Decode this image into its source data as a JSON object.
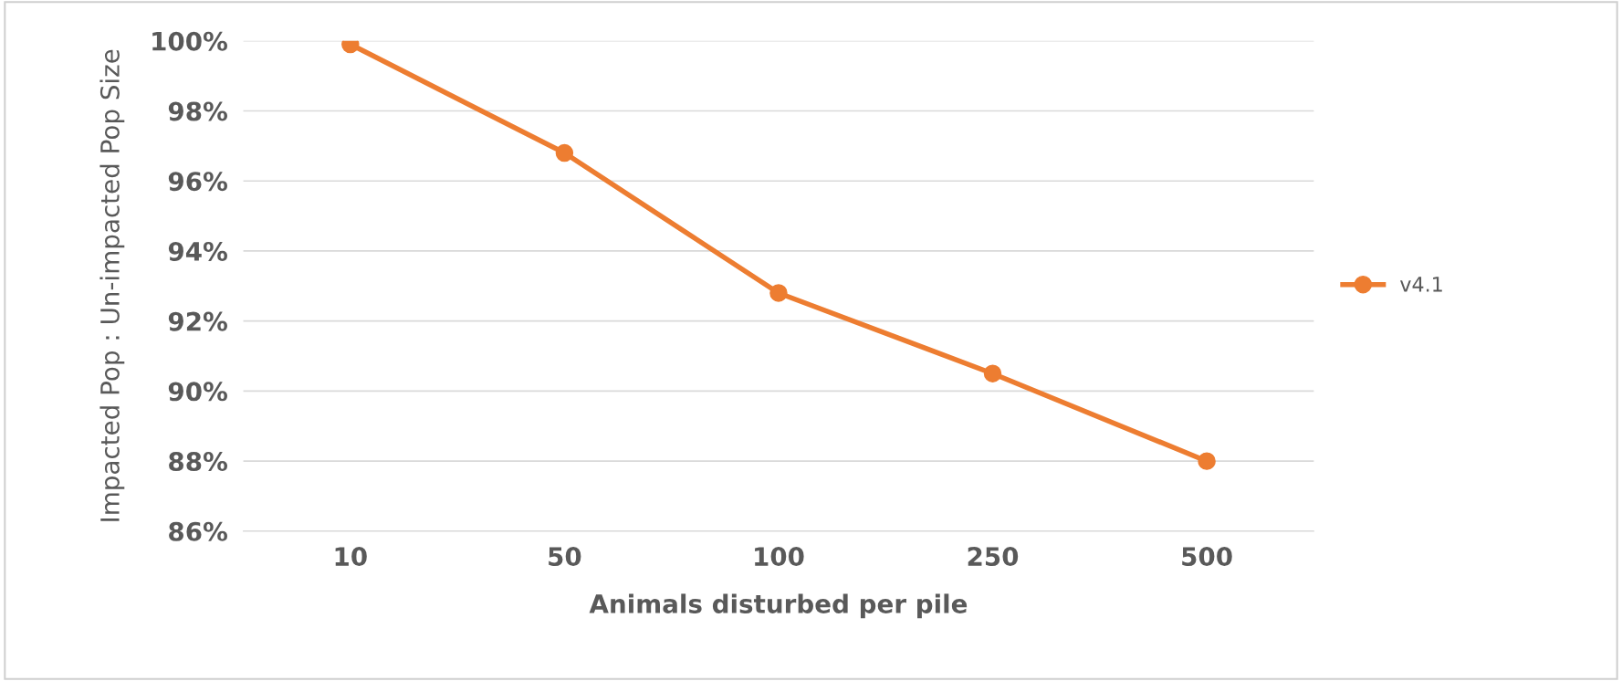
{
  "chart_data": {
    "type": "line",
    "xlabel": "Animals disturbed per pile",
    "ylabel": "Impacted Pop : Un-impacted Pop Size",
    "categories": [
      "10",
      "50",
      "100",
      "250",
      "500"
    ],
    "series": [
      {
        "name": "v4.1",
        "color": "#ed7d31",
        "values": [
          99.9,
          96.8,
          92.8,
          90.5,
          88.0
        ]
      }
    ],
    "ylim": [
      86,
      100
    ],
    "yticks": [
      {
        "value": 86,
        "label": "86%"
      },
      {
        "value": 88,
        "label": "88%"
      },
      {
        "value": 90,
        "label": "90%"
      },
      {
        "value": 92,
        "label": "92%"
      },
      {
        "value": 94,
        "label": "94%"
      },
      {
        "value": 96,
        "label": "96%"
      },
      {
        "value": 98,
        "label": "98%"
      },
      {
        "value": 100,
        "label": "100%"
      }
    ],
    "grid": "y",
    "legend": "right",
    "marker": "circle",
    "line_style": "solid"
  }
}
